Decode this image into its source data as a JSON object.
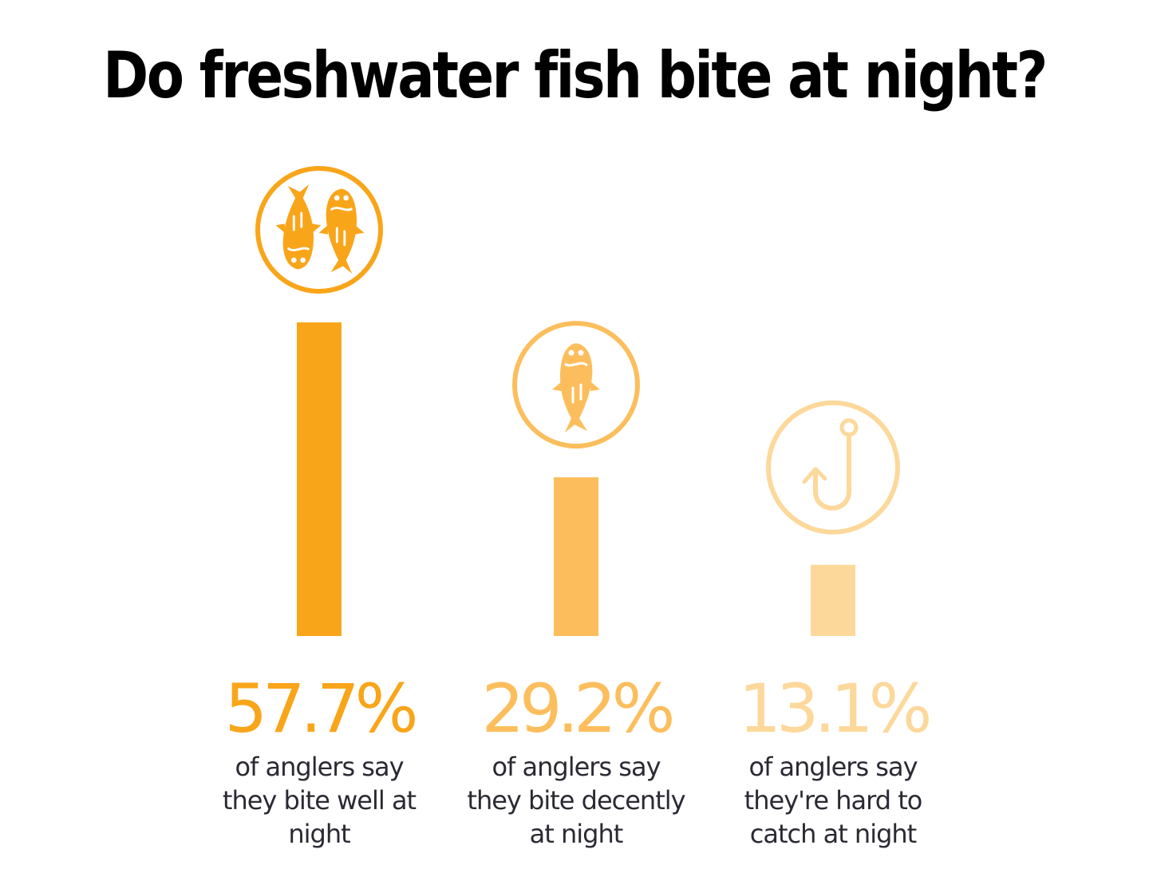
{
  "chart_data": {
    "type": "bar",
    "title": "Do freshwater fish bite at night?",
    "ylim": [
      0,
      57.7
    ],
    "grid": false,
    "legend": "none",
    "items": [
      {
        "value": 57.7,
        "value_label": "57.7%",
        "description": [
          "of anglers say",
          "they bite well at",
          "night"
        ],
        "color": "#F9A51A",
        "icon": "two-fish-icon"
      },
      {
        "value": 29.2,
        "value_label": "29.2%",
        "description": [
          "of anglers say",
          "they bite decently",
          "at night"
        ],
        "color": "#FCBE5D",
        "icon": "fish-icon"
      },
      {
        "value": 13.1,
        "value_label": "13.1%",
        "description": [
          "of anglers say",
          "they're hard to",
          "catch at night"
        ],
        "color": "#FDD89B",
        "icon": "fishing-hook-icon"
      }
    ]
  }
}
